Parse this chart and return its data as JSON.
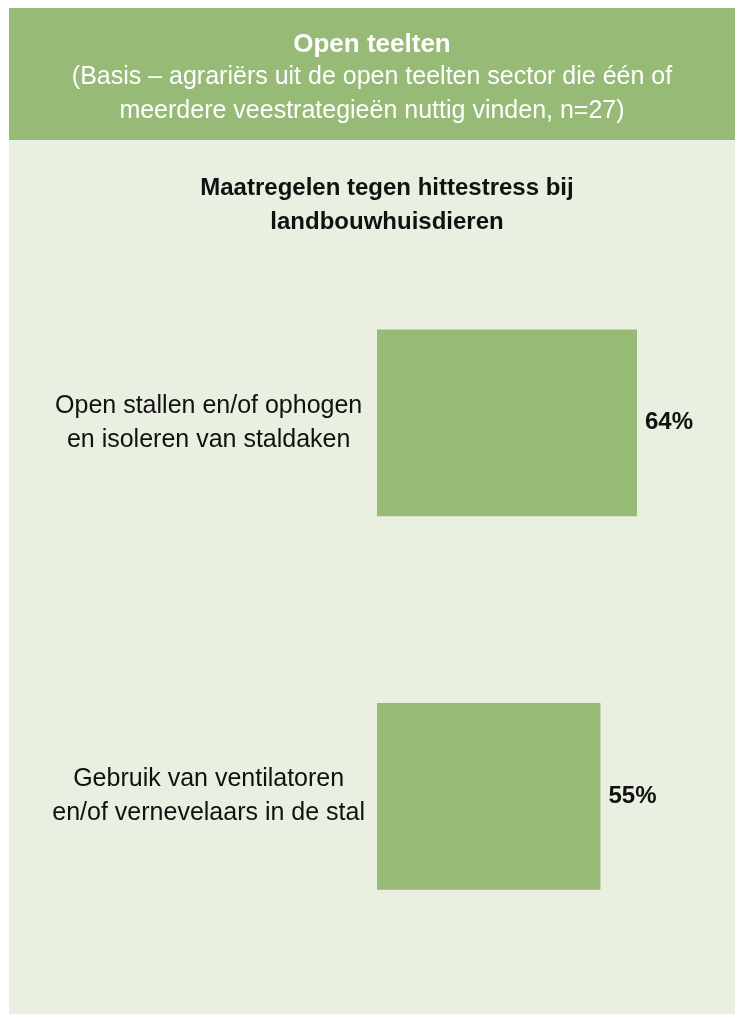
{
  "chart_data": {
    "type": "bar",
    "orientation": "horizontal",
    "title": "Open teelten",
    "subtitle": "(Basis – agrariërs uit de open teelten sector die één of meerdere veestrategieën nuttig vinden, n=27)",
    "annotations": [
      "Maatregelen tegen hittestress bij landbouwhuisdieren"
    ],
    "categories": [
      "Open stallen en/of ophogen en isoleren van staldaken",
      "Gebruik van ventilatoren en/of vernevelaars in de stal"
    ],
    "values": [
      64,
      55
    ],
    "value_labels": [
      "64%",
      "55%"
    ],
    "color": "#97ba77",
    "tick_labels": "y"
  }
}
